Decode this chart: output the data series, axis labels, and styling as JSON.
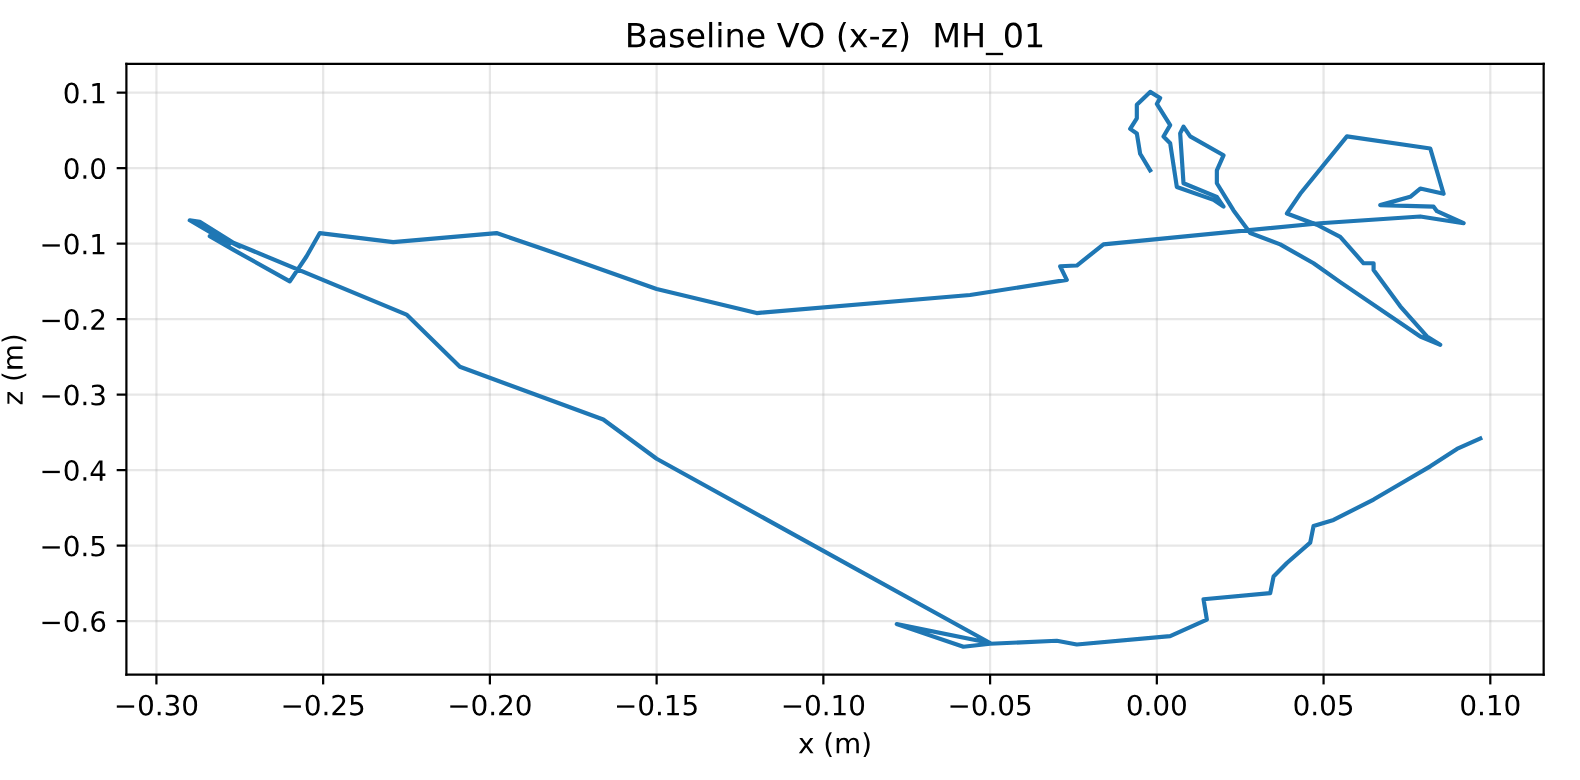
{
  "chart_data": {
    "type": "line",
    "title": "Baseline VO (x-z)  MH_01",
    "xlabel": "x (m)",
    "ylabel": "z (m)",
    "xlim": [
      -0.309,
      0.116
    ],
    "ylim": [
      -0.671,
      0.138
    ],
    "xticks": [
      {
        "value": -0.3,
        "label": "−0.30"
      },
      {
        "value": -0.25,
        "label": "−0.25"
      },
      {
        "value": -0.2,
        "label": "−0.20"
      },
      {
        "value": -0.15,
        "label": "−0.15"
      },
      {
        "value": -0.1,
        "label": "−0.10"
      },
      {
        "value": -0.05,
        "label": "−0.05"
      },
      {
        "value": 0,
        "label": "0.00"
      },
      {
        "value": 0.05,
        "label": "0.05"
      },
      {
        "value": 0.1,
        "label": "0.10"
      }
    ],
    "yticks": [
      {
        "value": -0.6,
        "label": "−0.6"
      },
      {
        "value": -0.5,
        "label": "−0.5"
      },
      {
        "value": -0.4,
        "label": "−0.4"
      },
      {
        "value": -0.3,
        "label": "−0.3"
      },
      {
        "value": -0.2,
        "label": "−0.2"
      },
      {
        "value": -0.1,
        "label": "−0.1"
      },
      {
        "value": 0,
        "label": "0.0"
      },
      {
        "value": 0.1,
        "label": "0.1"
      }
    ],
    "grid": true,
    "line_style": "solid",
    "series": [
      {
        "color": "#1f77b4",
        "x": [
          -0.002,
          -0.005,
          -0.006,
          -0.008,
          -0.006,
          -0.006,
          -0.002,
          0.001,
          0.0,
          0.004,
          0.002,
          0.004,
          0.006,
          0.017,
          0.02,
          0.018,
          0.008,
          0.007,
          0.008,
          0.01,
          0.02,
          0.018,
          0.018,
          0.023,
          0.028,
          0.037,
          0.047,
          0.055,
          0.079,
          0.085,
          0.081,
          0.073,
          0.065,
          0.065,
          0.062,
          0.055,
          0.048,
          0.039,
          0.043,
          0.057,
          0.082,
          0.086,
          0.079,
          0.076,
          0.067,
          0.083,
          0.084,
          0.092,
          0.079,
          0.049,
          -0.016,
          -0.024,
          -0.029,
          -0.027,
          -0.056,
          -0.12,
          -0.15,
          -0.184,
          -0.198,
          -0.229,
          -0.251,
          -0.255,
          -0.26,
          -0.277,
          -0.284,
          -0.278,
          -0.29,
          -0.287,
          -0.275,
          -0.279,
          -0.225,
          -0.209,
          -0.166,
          -0.15,
          -0.05,
          -0.078,
          -0.058,
          -0.05,
          -0.03,
          -0.024,
          0.004,
          0.015,
          0.014,
          0.034,
          0.035,
          0.039,
          0.046,
          0.047,
          0.053,
          0.065,
          0.075,
          0.082,
          0.09,
          0.097
        ],
        "values": [
          -0.003,
          0.019,
          0.046,
          0.052,
          0.066,
          0.084,
          0.101,
          0.093,
          0.085,
          0.057,
          0.042,
          0.033,
          -0.025,
          -0.042,
          -0.051,
          -0.038,
          -0.02,
          0.046,
          0.055,
          0.042,
          0.017,
          -0.003,
          -0.02,
          -0.056,
          -0.086,
          -0.101,
          -0.126,
          -0.151,
          -0.223,
          -0.234,
          -0.223,
          -0.183,
          -0.135,
          -0.126,
          -0.126,
          -0.091,
          -0.075,
          -0.06,
          -0.034,
          0.042,
          0.026,
          -0.034,
          -0.027,
          -0.038,
          -0.049,
          -0.051,
          -0.057,
          -0.073,
          -0.064,
          -0.073,
          -0.101,
          -0.129,
          -0.13,
          -0.148,
          -0.168,
          -0.192,
          -0.16,
          -0.107,
          -0.086,
          -0.098,
          -0.086,
          -0.117,
          -0.15,
          -0.108,
          -0.09,
          -0.1,
          -0.069,
          -0.071,
          -0.104,
          -0.095,
          -0.194,
          -0.263,
          -0.333,
          -0.385,
          -0.629,
          -0.604,
          -0.634,
          -0.63,
          -0.626,
          -0.631,
          -0.62,
          -0.598,
          -0.571,
          -0.563,
          -0.541,
          -0.523,
          -0.496,
          -0.474,
          -0.466,
          -0.439,
          -0.413,
          -0.395,
          -0.372,
          -0.358
        ]
      }
    ]
  }
}
